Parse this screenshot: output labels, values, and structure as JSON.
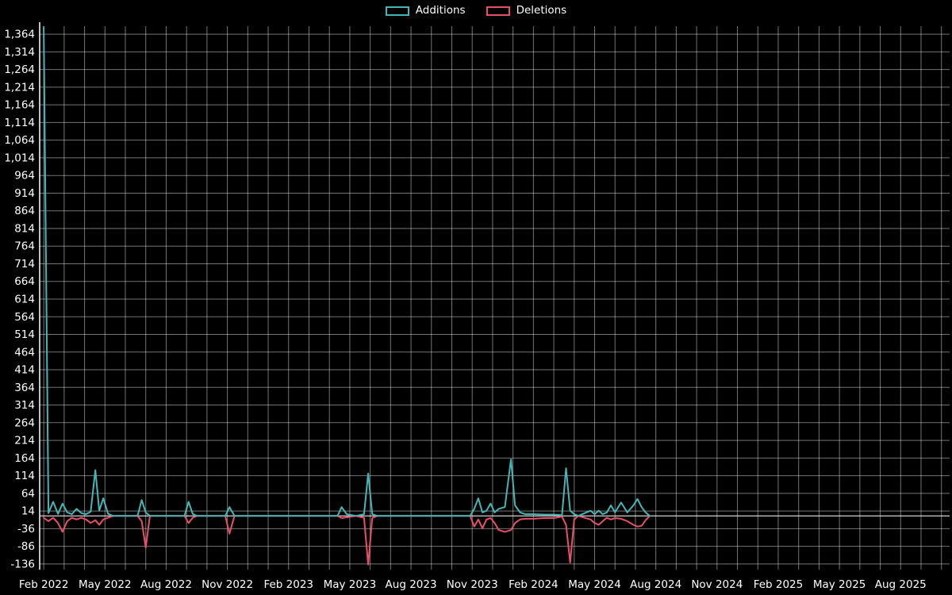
{
  "chart_data": {
    "type": "line",
    "title": "",
    "background_color": "#000000",
    "text_color": "#ffffff",
    "grid": true,
    "legend_position": "top-center",
    "legend": [
      {
        "label": "Additions",
        "color": "#46b5b5"
      },
      {
        "label": "Deletions",
        "color": "#e8506a"
      }
    ],
    "x_axis": {
      "unit": "months since Feb 2022",
      "range": [
        -0.2,
        44.4
      ],
      "gridline_every_months": 1,
      "tick_values": [
        0,
        3,
        6,
        9,
        12,
        15,
        18,
        21,
        24,
        27,
        30,
        33,
        36,
        39,
        42
      ],
      "tick_labels": [
        "Feb 2022",
        "May 2022",
        "Aug 2022",
        "Nov 2022",
        "Feb 2023",
        "May 2023",
        "Aug 2023",
        "Nov 2023",
        "Feb 2024",
        "May 2024",
        "Aug 2024",
        "Nov 2024",
        "Feb 2025",
        "May 2025",
        "Aug 2025"
      ]
    },
    "y_axis": {
      "range": [
        -152,
        1380
      ],
      "tick_values": [
        1364,
        1314,
        1264,
        1214,
        1164,
        1114,
        1064,
        1014,
        964,
        914,
        864,
        814,
        764,
        714,
        664,
        614,
        564,
        514,
        464,
        414,
        364,
        314,
        264,
        214,
        164,
        114,
        64,
        14,
        -36,
        -86,
        -136
      ],
      "tick_labels": [
        "1,364",
        "1,314",
        "1,264",
        "1,214",
        "1,164",
        "1,114",
        "1,064",
        "1,014",
        "964",
        "914",
        "864",
        "814",
        "764",
        "714",
        "664",
        "614",
        "564",
        "514",
        "464",
        "414",
        "364",
        "314",
        "264",
        "214",
        "164",
        "114",
        "64",
        "14",
        "-36",
        "-86",
        "-136"
      ],
      "zero_line": 0
    },
    "series": [
      {
        "name": "Additions",
        "color": "#46b5b5",
        "points": [
          [
            0.0,
            1385
          ],
          [
            0.23,
            8
          ],
          [
            0.46,
            40
          ],
          [
            0.7,
            6
          ],
          [
            0.92,
            35
          ],
          [
            1.15,
            10
          ],
          [
            1.38,
            5
          ],
          [
            1.61,
            20
          ],
          [
            1.84,
            8
          ],
          [
            2.07,
            5
          ],
          [
            2.3,
            12
          ],
          [
            2.53,
            130
          ],
          [
            2.72,
            15
          ],
          [
            2.92,
            50
          ],
          [
            3.15,
            6
          ],
          [
            3.4,
            0
          ],
          [
            4.6,
            0
          ],
          [
            4.8,
            45
          ],
          [
            5.0,
            10
          ],
          [
            5.2,
            0
          ],
          [
            6.9,
            0
          ],
          [
            7.1,
            40
          ],
          [
            7.3,
            6
          ],
          [
            7.5,
            0
          ],
          [
            8.9,
            0
          ],
          [
            9.1,
            25
          ],
          [
            9.35,
            0
          ],
          [
            14.4,
            0
          ],
          [
            14.6,
            25
          ],
          [
            14.85,
            5
          ],
          [
            15.3,
            0
          ],
          [
            15.7,
            5
          ],
          [
            15.9,
            120
          ],
          [
            16.1,
            5
          ],
          [
            16.35,
            0
          ],
          [
            20.9,
            0
          ],
          [
            21.1,
            20
          ],
          [
            21.3,
            50
          ],
          [
            21.5,
            10
          ],
          [
            21.7,
            15
          ],
          [
            21.9,
            35
          ],
          [
            22.1,
            10
          ],
          [
            22.3,
            20
          ],
          [
            22.6,
            25
          ],
          [
            22.9,
            160
          ],
          [
            23.1,
            30
          ],
          [
            23.35,
            10
          ],
          [
            23.6,
            5
          ],
          [
            24.0,
            5
          ],
          [
            24.5,
            4
          ],
          [
            25.0,
            4
          ],
          [
            25.4,
            2
          ],
          [
            25.6,
            135
          ],
          [
            25.8,
            15
          ],
          [
            26.0,
            5
          ],
          [
            26.2,
            0
          ],
          [
            26.8,
            15
          ],
          [
            27.0,
            5
          ],
          [
            27.2,
            15
          ],
          [
            27.4,
            5
          ],
          [
            27.6,
            10
          ],
          [
            27.8,
            30
          ],
          [
            28.0,
            10
          ],
          [
            28.3,
            38
          ],
          [
            28.6,
            10
          ],
          [
            28.9,
            30
          ],
          [
            29.1,
            48
          ],
          [
            29.3,
            25
          ],
          [
            29.5,
            10
          ],
          [
            29.7,
            0
          ]
        ]
      },
      {
        "name": "Deletions",
        "color": "#e8506a",
        "points": [
          [
            0.0,
            -5
          ],
          [
            0.23,
            -15
          ],
          [
            0.46,
            -5
          ],
          [
            0.7,
            -20
          ],
          [
            0.92,
            -45
          ],
          [
            1.15,
            -15
          ],
          [
            1.38,
            -5
          ],
          [
            1.61,
            -10
          ],
          [
            1.84,
            -5
          ],
          [
            2.07,
            -10
          ],
          [
            2.3,
            -20
          ],
          [
            2.53,
            -12
          ],
          [
            2.72,
            -25
          ],
          [
            2.92,
            -10
          ],
          [
            3.15,
            -5
          ],
          [
            3.4,
            0
          ],
          [
            4.6,
            0
          ],
          [
            4.8,
            -15
          ],
          [
            5.0,
            -90
          ],
          [
            5.2,
            0
          ],
          [
            6.9,
            0
          ],
          [
            7.1,
            -20
          ],
          [
            7.3,
            -5
          ],
          [
            7.5,
            0
          ],
          [
            8.9,
            0
          ],
          [
            9.1,
            -50
          ],
          [
            9.35,
            0
          ],
          [
            14.4,
            0
          ],
          [
            14.6,
            -6
          ],
          [
            14.85,
            -4
          ],
          [
            15.3,
            0
          ],
          [
            15.7,
            -5
          ],
          [
            15.9,
            -138
          ],
          [
            16.1,
            -6
          ],
          [
            16.35,
            0
          ],
          [
            20.9,
            0
          ],
          [
            21.1,
            -30
          ],
          [
            21.3,
            -10
          ],
          [
            21.5,
            -35
          ],
          [
            21.7,
            -10
          ],
          [
            21.9,
            -6
          ],
          [
            22.1,
            -20
          ],
          [
            22.3,
            -40
          ],
          [
            22.6,
            -45
          ],
          [
            22.9,
            -40
          ],
          [
            23.1,
            -20
          ],
          [
            23.35,
            -10
          ],
          [
            23.6,
            -8
          ],
          [
            24.0,
            -8
          ],
          [
            24.5,
            -6
          ],
          [
            25.0,
            -6
          ],
          [
            25.4,
            -2
          ],
          [
            25.6,
            -25
          ],
          [
            25.8,
            -132
          ],
          [
            26.0,
            -10
          ],
          [
            26.2,
            0
          ],
          [
            26.8,
            -10
          ],
          [
            27.0,
            -20
          ],
          [
            27.2,
            -25
          ],
          [
            27.4,
            -15
          ],
          [
            27.6,
            -5
          ],
          [
            27.8,
            -10
          ],
          [
            28.0,
            -6
          ],
          [
            28.3,
            -8
          ],
          [
            28.6,
            -15
          ],
          [
            28.9,
            -25
          ],
          [
            29.1,
            -30
          ],
          [
            29.3,
            -28
          ],
          [
            29.5,
            -12
          ],
          [
            29.7,
            0
          ]
        ]
      }
    ]
  }
}
